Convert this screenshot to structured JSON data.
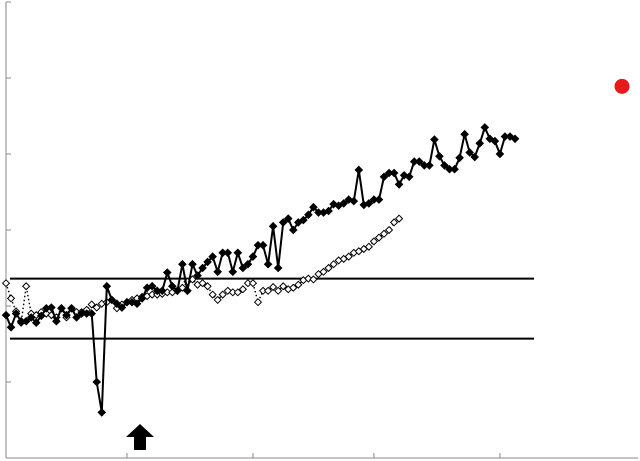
{
  "chart_data": {
    "type": "line",
    "title": "",
    "xlabel": "",
    "ylabel": "",
    "xlim": [
      0,
      100
    ],
    "ylim": [
      0,
      6
    ],
    "x_ticks": [
      0,
      24,
      49,
      73,
      98
    ],
    "y_ticks": [
      0,
      1,
      2,
      3,
      4,
      5,
      6
    ],
    "grid": false,
    "legend": "none",
    "colors": {
      "series": "#000000",
      "marker_fill_open": "#ffffff",
      "highlight": "#e8191b"
    },
    "control_limits": [
      2.36,
      1.57
    ],
    "arrow_marker": {
      "x": 25,
      "y": 0
    },
    "highlight_point": {
      "x": 119,
      "y": 4.89
    },
    "series": [
      {
        "style": "solid-filled-diamond",
        "x": [
          0,
          1,
          2,
          3,
          4,
          5,
          6,
          7,
          8,
          9,
          10,
          11,
          12,
          13,
          14,
          15,
          16,
          17,
          18,
          19,
          20,
          21,
          22,
          23,
          24,
          25,
          26,
          27,
          28,
          29,
          30,
          31,
          32,
          33,
          34,
          35,
          36,
          37,
          38,
          39,
          40,
          41,
          42,
          43,
          44,
          45,
          46,
          47,
          48,
          49,
          50,
          51,
          52,
          53,
          54,
          55,
          56,
          57,
          58,
          59,
          60,
          61,
          62,
          63,
          64,
          65,
          66,
          67,
          68,
          69,
          70,
          71,
          72,
          73,
          74,
          75,
          76,
          77,
          78,
          79,
          80,
          81,
          82,
          83,
          84,
          85,
          86,
          87,
          88,
          89,
          90,
          91,
          92,
          93,
          94,
          95,
          96,
          97,
          98,
          99,
          100,
          101
        ],
        "y": [
          1.88,
          1.72,
          1.9,
          1.8,
          1.8,
          1.85,
          1.78,
          1.87,
          1.97,
          1.98,
          1.8,
          1.97,
          1.88,
          1.97,
          1.85,
          1.9,
          1.9,
          1.9,
          1.0,
          0.6,
          2.26,
          2.08,
          2.03,
          1.98,
          2.05,
          2.05,
          2.03,
          2.1,
          2.24,
          2.26,
          2.2,
          2.2,
          2.44,
          2.26,
          2.2,
          2.55,
          2.2,
          2.55,
          2.4,
          2.5,
          2.58,
          2.65,
          2.45,
          2.7,
          2.7,
          2.45,
          2.7,
          2.5,
          2.55,
          2.65,
          2.8,
          2.8,
          2.55,
          3.05,
          2.5,
          3.1,
          3.15,
          3.0,
          3.1,
          3.13,
          3.2,
          3.3,
          3.23,
          3.23,
          3.25,
          3.34,
          3.32,
          3.35,
          3.4,
          3.38,
          3.79,
          3.33,
          3.35,
          3.4,
          3.4,
          3.7,
          3.75,
          3.75,
          3.6,
          3.72,
          3.7,
          3.9,
          3.9,
          3.85,
          3.85,
          4.19,
          3.97,
          3.85,
          3.8,
          3.8,
          3.95,
          4.26,
          4.02,
          3.96,
          4.14,
          4.35,
          4.2,
          4.17,
          4.0,
          4.23,
          4.23,
          4.2
        ]
      },
      {
        "style": "dotted-open-diamond",
        "x": [
          0,
          1,
          2,
          3,
          4,
          5,
          6,
          7,
          8,
          9,
          10,
          11,
          12,
          13,
          14,
          15,
          16,
          17,
          18,
          19,
          20,
          21,
          22,
          23,
          24,
          25,
          26,
          27,
          28,
          29,
          30,
          31,
          32,
          33,
          34,
          35,
          36,
          37,
          38,
          39,
          40,
          41,
          42,
          43,
          44,
          45,
          46,
          47,
          48,
          49,
          50,
          51,
          52,
          53,
          54,
          55,
          56,
          57,
          58,
          59,
          60,
          61,
          62,
          63,
          64,
          65,
          66,
          67,
          68,
          69,
          70,
          71,
          72,
          73,
          74,
          75,
          76,
          77,
          78
        ],
        "y": [
          2.3,
          2.1,
          1.93,
          1.78,
          2.26,
          1.9,
          1.88,
          1.92,
          1.9,
          1.88,
          1.85,
          1.97,
          1.85,
          1.97,
          1.92,
          1.92,
          1.95,
          2.02,
          1.98,
          2.03,
          2.05,
          2.08,
          1.97,
          2.02,
          2.05,
          2.08,
          2.1,
          2.12,
          2.13,
          2.15,
          2.15,
          2.16,
          2.18,
          2.18,
          2.2,
          2.24,
          2.32,
          2.35,
          2.28,
          2.3,
          2.26,
          2.15,
          2.08,
          2.15,
          2.2,
          2.18,
          2.18,
          2.22,
          2.3,
          2.3,
          2.05,
          2.2,
          2.2,
          2.25,
          2.2,
          2.26,
          2.22,
          2.24,
          2.28,
          2.34,
          2.36,
          2.35,
          2.42,
          2.45,
          2.5,
          2.55,
          2.6,
          2.62,
          2.65,
          2.7,
          2.72,
          2.75,
          2.78,
          2.85,
          2.9,
          2.95,
          3.0,
          3.1,
          3.15
        ]
      }
    ]
  }
}
